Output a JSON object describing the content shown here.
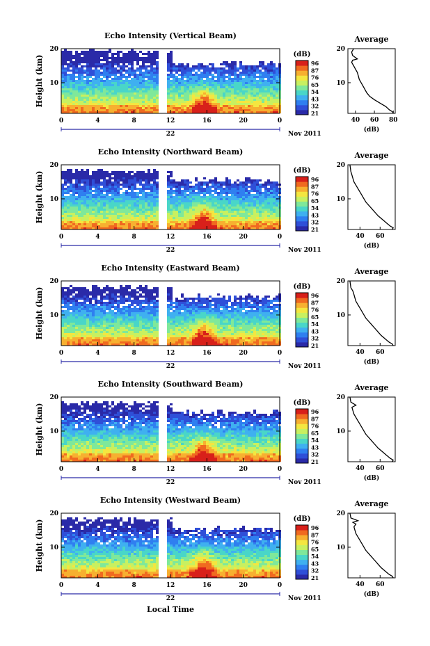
{
  "colors": {
    "colormap": [
      "#2a2aa8",
      "#2f4fd8",
      "#2f7ff0",
      "#3fb0f0",
      "#49d6c8",
      "#7fe89a",
      "#c8f060",
      "#f4e640",
      "#f7b030",
      "#f06a20",
      "#d8201a"
    ],
    "line": "#000000",
    "date_axis": "#2a2aa8"
  },
  "x_axis": {
    "ticks": [
      "0",
      "4",
      "8",
      "12",
      "16",
      "20",
      "0"
    ],
    "day_label": "22",
    "date_label": "Nov 2011",
    "xlabel": "Local Time"
  },
  "colorbar": {
    "unit": "(dB)",
    "ticks": [
      "96",
      "87",
      "76",
      "65",
      "54",
      "43",
      "32",
      "21"
    ]
  },
  "panels": [
    {
      "title": "Echo Intensity (Vertical Beam)",
      "ylabel": "Height (km)",
      "yticks": [
        "20",
        "10"
      ],
      "cb_ticks": [
        "96",
        "87",
        "76",
        "65",
        "54",
        "43",
        "32",
        "21"
      ],
      "avg_title": "Average",
      "avg_xticks": [
        "40",
        "60",
        "80"
      ],
      "avg_xlabel": "(dB)",
      "avg_yticks": [
        "20",
        "10"
      ]
    },
    {
      "title": "Echo Intensity (Northward Beam)",
      "ylabel": "Height (km)",
      "yticks": [
        "20",
        "10"
      ],
      "cb_ticks": [
        "96",
        "87",
        "76",
        "65",
        "54",
        "43",
        "32",
        "21"
      ],
      "avg_title": "Average",
      "avg_xticks": [
        "40",
        "60"
      ],
      "avg_xlabel": "(dB)",
      "avg_yticks": [
        "20",
        "10"
      ]
    },
    {
      "title": "Echo Intensity (Eastward Beam)",
      "ylabel": "Height (km)",
      "yticks": [
        "20",
        "10"
      ],
      "cb_ticks": [
        "96",
        "87",
        "76",
        "65",
        "54",
        "43",
        "32",
        "21"
      ],
      "avg_title": "Average",
      "avg_xticks": [
        "40",
        "60"
      ],
      "avg_xlabel": "(dB)",
      "avg_yticks": [
        "20",
        "10"
      ]
    },
    {
      "title": "Echo Intensity (Southward Beam)",
      "ylabel": "Height (km)",
      "yticks": [
        "20",
        "10"
      ],
      "cb_ticks": [
        "96",
        "87",
        "76",
        "65",
        "54",
        "43",
        "32",
        "21"
      ],
      "avg_title": "Average",
      "avg_xticks": [
        "40",
        "60"
      ],
      "avg_xlabel": "(dB)",
      "avg_yticks": [
        "20",
        "10"
      ]
    },
    {
      "title": "Echo Intensity (Westward Beam)",
      "ylabel": "Height (km)",
      "yticks": [
        "20",
        "10"
      ],
      "cb_ticks": [
        "96",
        "87",
        "76",
        "65",
        "54",
        "43",
        "32",
        "21"
      ],
      "avg_title": "Average",
      "avg_xticks": [
        "40",
        "60"
      ],
      "avg_xlabel": "(dB)",
      "avg_yticks": [
        "20",
        "10"
      ]
    }
  ],
  "chart_data": [
    {
      "type": "heatmap",
      "title": "Echo Intensity (Vertical Beam)",
      "xlabel": "Local Time",
      "ylabel": "Height (km)",
      "xlim": [
        0,
        24
      ],
      "ylim": [
        1,
        20
      ],
      "zlim": [
        21,
        96
      ],
      "colorbar_label": "(dB)",
      "data_gap_hours": [
        11.3,
        11.9
      ],
      "echo_top_km": [
        19,
        15
      ],
      "features": [
        {
          "time_h": 16,
          "height_km": 2,
          "intensity_db": 96
        }
      ],
      "average_profile": {
        "type": "line",
        "title": "Average",
        "xlabel": "(dB)",
        "xlim": [
          32,
          82
        ],
        "ylim": [
          1,
          20
        ],
        "x": [
          80,
          79,
          76,
          72,
          66,
          60,
          55,
          52,
          50,
          48,
          46,
          44,
          43,
          42,
          40,
          38,
          36,
          37,
          42,
          37,
          36,
          38
        ],
        "y": [
          1,
          1.5,
          2,
          3,
          4,
          5,
          6,
          7,
          8,
          9,
          10,
          11,
          12,
          13,
          14,
          15,
          16,
          16.6,
          17,
          18,
          19,
          20
        ]
      }
    },
    {
      "type": "heatmap",
      "title": "Echo Intensity (Northward Beam)",
      "xlabel": "Local Time",
      "ylabel": "Height (km)",
      "xlim": [
        0,
        24
      ],
      "ylim": [
        1,
        20
      ],
      "zlim": [
        21,
        96
      ],
      "colorbar_label": "(dB)",
      "data_gap_hours": [
        11.3,
        11.9
      ],
      "echo_top_km": [
        18,
        15
      ],
      "features": [
        {
          "time_h": 16,
          "height_km": 2,
          "intensity_db": 96
        }
      ],
      "average_profile": {
        "type": "line",
        "title": "Average",
        "xlabel": "(dB)",
        "xlim": [
          28,
          75
        ],
        "ylim": [
          1,
          20
        ],
        "x": [
          72,
          73,
          70,
          66,
          62,
          58,
          55,
          52,
          49,
          46,
          44,
          42,
          40,
          38,
          36,
          34,
          33,
          32,
          31,
          30
        ],
        "y": [
          1,
          1.5,
          2,
          3,
          4,
          5,
          6,
          7,
          8,
          9,
          10,
          11,
          12,
          13,
          14,
          15,
          16,
          17,
          18,
          20
        ]
      }
    },
    {
      "type": "heatmap",
      "title": "Echo Intensity (Eastward Beam)",
      "xlabel": "Local Time",
      "ylabel": "Height (km)",
      "xlim": [
        0,
        24
      ],
      "ylim": [
        1,
        20
      ],
      "zlim": [
        21,
        96
      ],
      "colorbar_label": "(dB)",
      "data_gap_hours": [
        11.3,
        11.9
      ],
      "echo_top_km": [
        18,
        15
      ],
      "features": [
        {
          "time_h": 16,
          "height_km": 2,
          "intensity_db": 96
        }
      ],
      "average_profile": {
        "type": "line",
        "title": "Average",
        "xlabel": "(dB)",
        "xlim": [
          28,
          75
        ],
        "ylim": [
          1,
          20
        ],
        "x": [
          73,
          72,
          69,
          65,
          61,
          58,
          55,
          52,
          49,
          46,
          44,
          42,
          40,
          38,
          36,
          35,
          34,
          33,
          31,
          30
        ],
        "y": [
          1,
          1.5,
          2,
          3,
          4,
          5,
          6,
          7,
          8,
          9,
          10,
          11,
          12,
          13,
          14,
          15,
          16,
          17,
          18,
          20
        ]
      }
    },
    {
      "type": "heatmap",
      "title": "Echo Intensity (Southward Beam)",
      "xlabel": "Local Time",
      "ylabel": "Height (km)",
      "xlim": [
        0,
        24
      ],
      "ylim": [
        1,
        20
      ],
      "zlim": [
        21,
        96
      ],
      "colorbar_label": "(dB)",
      "data_gap_hours": [
        11.3,
        11.9
      ],
      "echo_top_km": [
        18,
        15
      ],
      "features": [
        {
          "time_h": 16,
          "height_km": 2,
          "intensity_db": 96
        }
      ],
      "average_profile": {
        "type": "line",
        "title": "Average",
        "xlabel": "(dB)",
        "xlim": [
          28,
          75
        ],
        "ylim": [
          1,
          20
        ],
        "x": [
          72,
          73,
          70,
          66,
          62,
          58,
          55,
          52,
          49,
          46,
          44,
          42,
          40,
          38,
          36,
          34,
          33,
          32,
          36,
          31,
          30
        ],
        "y": [
          1,
          1.5,
          2,
          3,
          4,
          5,
          6,
          7,
          8,
          9,
          10,
          11,
          12,
          13,
          14,
          15,
          16,
          17,
          17.6,
          18.5,
          20
        ]
      }
    },
    {
      "type": "heatmap",
      "title": "Echo Intensity (Westward Beam)",
      "xlabel": "Local Time",
      "ylabel": "Height (km)",
      "xlim": [
        0,
        24
      ],
      "ylim": [
        1,
        20
      ],
      "zlim": [
        21,
        96
      ],
      "colorbar_label": "(dB)",
      "data_gap_hours": [
        11.3,
        11.9
      ],
      "echo_top_km": [
        18,
        15
      ],
      "features": [
        {
          "time_h": 16,
          "height_km": 2,
          "intensity_db": 96
        }
      ],
      "average_profile": {
        "type": "line",
        "title": "Average",
        "xlabel": "(dB)",
        "xlim": [
          28,
          75
        ],
        "ylim": [
          1,
          20
        ],
        "x": [
          73,
          72,
          69,
          65,
          61,
          58,
          55,
          52,
          49,
          46,
          44,
          42,
          40,
          38,
          36,
          35,
          34,
          36,
          33,
          38,
          31,
          30
        ],
        "y": [
          1,
          1.5,
          2,
          3,
          4,
          5,
          6,
          7,
          8,
          9,
          10,
          11,
          12,
          13,
          14,
          15,
          16,
          16.8,
          17.3,
          17.8,
          18.6,
          20
        ]
      }
    }
  ]
}
